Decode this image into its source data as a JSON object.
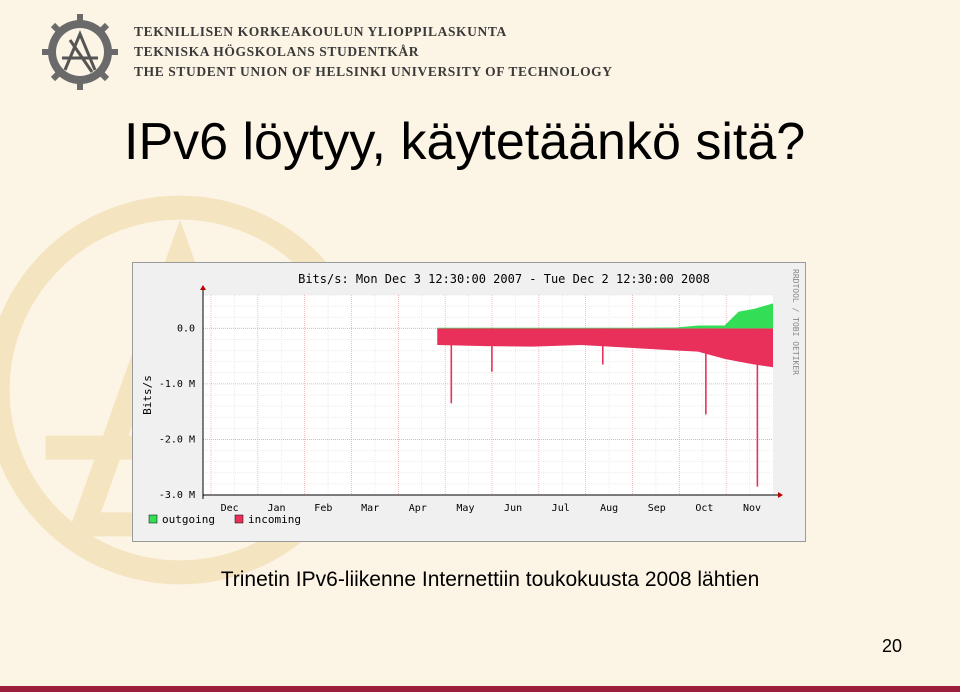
{
  "organization": {
    "line1": "TEKNILLISEN KORKEAKOULUN YLIOPPILASKUNTA",
    "line2": "TEKNISKA HÖGSKOLANS STUDENTKÅR",
    "line3": "THE STUDENT UNION OF HELSINKI UNIVERSITY OF TECHNOLOGY"
  },
  "slide": {
    "title": "IPv6 löytyy, käytetäänkö sitä?",
    "caption": "Trinetin IPv6-liikenne Internettiin toukokuusta 2008 lähtien",
    "page_number": "20"
  },
  "colors": {
    "outgoing": "#33dd55",
    "incoming": "#e8305a",
    "accent_bar": "#9b1f3b",
    "background": "#fcf4e4"
  },
  "chart_data": {
    "type": "area",
    "title": "Bits/s: Mon Dec  3 12:30:00 2007 - Tue Dec  2 12:30:00 2008",
    "side_label": "RRDTOOL / TOBI OETIKER",
    "ylabel": "Bits/s",
    "ylim": [
      -3000000,
      600000
    ],
    "yticks": [
      {
        "value": 0,
        "label": "0.0"
      },
      {
        "value": -1000000,
        "label": "-1.0 M"
      },
      {
        "value": -2000000,
        "label": "-2.0 M"
      },
      {
        "value": -3000000,
        "label": "-3.0 M"
      }
    ],
    "categories": [
      "Dec",
      "Jan",
      "Feb",
      "Mar",
      "Apr",
      "May",
      "Jun",
      "Jul",
      "Aug",
      "Sep",
      "Oct",
      "Nov"
    ],
    "x": [
      "2008-05-01",
      "2008-06-01",
      "2008-07-01",
      "2008-08-01",
      "2008-09-01",
      "2008-10-01",
      "2008-10-15",
      "2008-11-01",
      "2008-11-10",
      "2008-11-20",
      "2008-12-02"
    ],
    "series": [
      {
        "name": "outgoing",
        "values": [
          10000,
          10000,
          10000,
          10000,
          10000,
          15000,
          50000,
          50000,
          300000,
          350000,
          450000
        ]
      },
      {
        "name": "incoming",
        "values": [
          -300000,
          -320000,
          -330000,
          -300000,
          -350000,
          -400000,
          -420000,
          -550000,
          -600000,
          -650000,
          -700000
        ]
      }
    ],
    "spikes": [
      {
        "x": "2008-05-10",
        "value": -1350000
      },
      {
        "x": "2008-06-05",
        "value": -780000
      },
      {
        "x": "2008-08-15",
        "value": -650000
      },
      {
        "x": "2008-10-20",
        "value": -1550000
      },
      {
        "x": "2008-11-22",
        "value": -2850000
      }
    ],
    "grid": true,
    "legend": "bottom-left"
  }
}
